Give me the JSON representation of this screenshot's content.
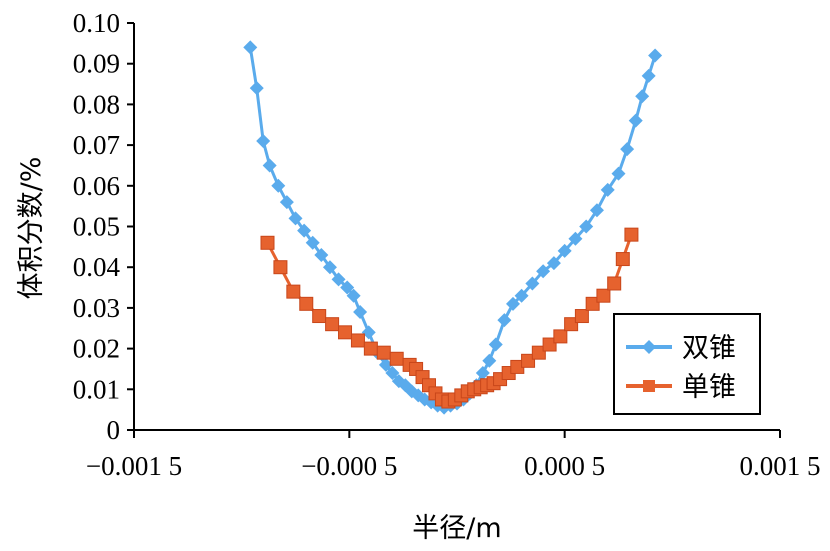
{
  "chart_data": {
    "type": "line",
    "xlabel": "半径/m",
    "ylabel": "体积分数/%",
    "xlim": [
      -0.0015,
      0.0015
    ],
    "ylim": [
      0,
      0.1
    ],
    "x_ticks": [
      -0.0015,
      -0.0005,
      0.0005,
      0.0015
    ],
    "x_tick_labels": [
      "−0.001 5",
      "−0.000 5",
      "0.000 5",
      "0.001 5"
    ],
    "y_ticks": [
      0,
      0.01,
      0.02,
      0.03,
      0.04,
      0.05,
      0.06,
      0.07,
      0.08,
      0.09,
      0.1
    ],
    "y_tick_labels": [
      "0",
      "0.01",
      "0.02",
      "0.03",
      "0.04",
      "0.05",
      "0.06",
      "0.07",
      "0.08",
      "0.09",
      "0.10"
    ],
    "grid": false,
    "legend_position": "bottom-right",
    "series": [
      {
        "name": "双锥",
        "color": "#5aabec",
        "marker": "diamond",
        "x": [
          -0.00096,
          -0.00093,
          -0.0009,
          -0.00087,
          -0.00083,
          -0.00079,
          -0.00075,
          -0.00071,
          -0.00067,
          -0.00063,
          -0.00059,
          -0.00055,
          -0.00051,
          -0.00048,
          -0.00045,
          -0.00041,
          -0.00037,
          -0.00033,
          -0.0003,
          -0.00027,
          -0.00024,
          -0.00021,
          -0.00018,
          -0.00015,
          -0.00012,
          -9e-05,
          -6e-05,
          -3e-05,
          0.0,
          3e-05,
          6e-05,
          9e-05,
          0.00012,
          0.00015,
          0.00018,
          0.00022,
          0.00026,
          0.0003,
          0.00035,
          0.0004,
          0.00045,
          0.0005,
          0.00055,
          0.0006,
          0.00065,
          0.0007,
          0.00075,
          0.00079,
          0.00083,
          0.00086,
          0.00089,
          0.00092
        ],
        "y": [
          0.094,
          0.084,
          0.071,
          0.065,
          0.06,
          0.056,
          0.052,
          0.049,
          0.046,
          0.043,
          0.04,
          0.037,
          0.035,
          0.033,
          0.029,
          0.024,
          0.019,
          0.016,
          0.014,
          0.012,
          0.011,
          0.0095,
          0.0085,
          0.0075,
          0.0068,
          0.006,
          0.0055,
          0.006,
          0.0065,
          0.0075,
          0.009,
          0.011,
          0.014,
          0.017,
          0.021,
          0.027,
          0.031,
          0.033,
          0.036,
          0.039,
          0.041,
          0.044,
          0.047,
          0.05,
          0.054,
          0.059,
          0.063,
          0.069,
          0.076,
          0.082,
          0.087,
          0.092
        ]
      },
      {
        "name": "单锥",
        "color": "#e6622e",
        "marker": "square",
        "x": [
          -0.00088,
          -0.00082,
          -0.00076,
          -0.0007,
          -0.00064,
          -0.00058,
          -0.00052,
          -0.00046,
          -0.0004,
          -0.00034,
          -0.00028,
          -0.00022,
          -0.00019,
          -0.00016,
          -0.00013,
          -0.0001,
          -7e-05,
          -4e-05,
          -1e-05,
          2e-05,
          5e-05,
          8e-05,
          0.00011,
          0.00014,
          0.00017,
          0.0002,
          0.00024,
          0.00028,
          0.00033,
          0.00038,
          0.00043,
          0.00048,
          0.00053,
          0.00058,
          0.00063,
          0.00068,
          0.00073,
          0.00077,
          0.00081
        ],
        "y": [
          0.046,
          0.04,
          0.034,
          0.031,
          0.028,
          0.026,
          0.024,
          0.022,
          0.02,
          0.019,
          0.0175,
          0.016,
          0.015,
          0.013,
          0.011,
          0.009,
          0.0075,
          0.007,
          0.0075,
          0.0085,
          0.0095,
          0.01,
          0.0105,
          0.011,
          0.0115,
          0.0125,
          0.014,
          0.0155,
          0.017,
          0.019,
          0.021,
          0.023,
          0.026,
          0.028,
          0.031,
          0.033,
          0.036,
          0.042,
          0.048
        ]
      }
    ]
  }
}
